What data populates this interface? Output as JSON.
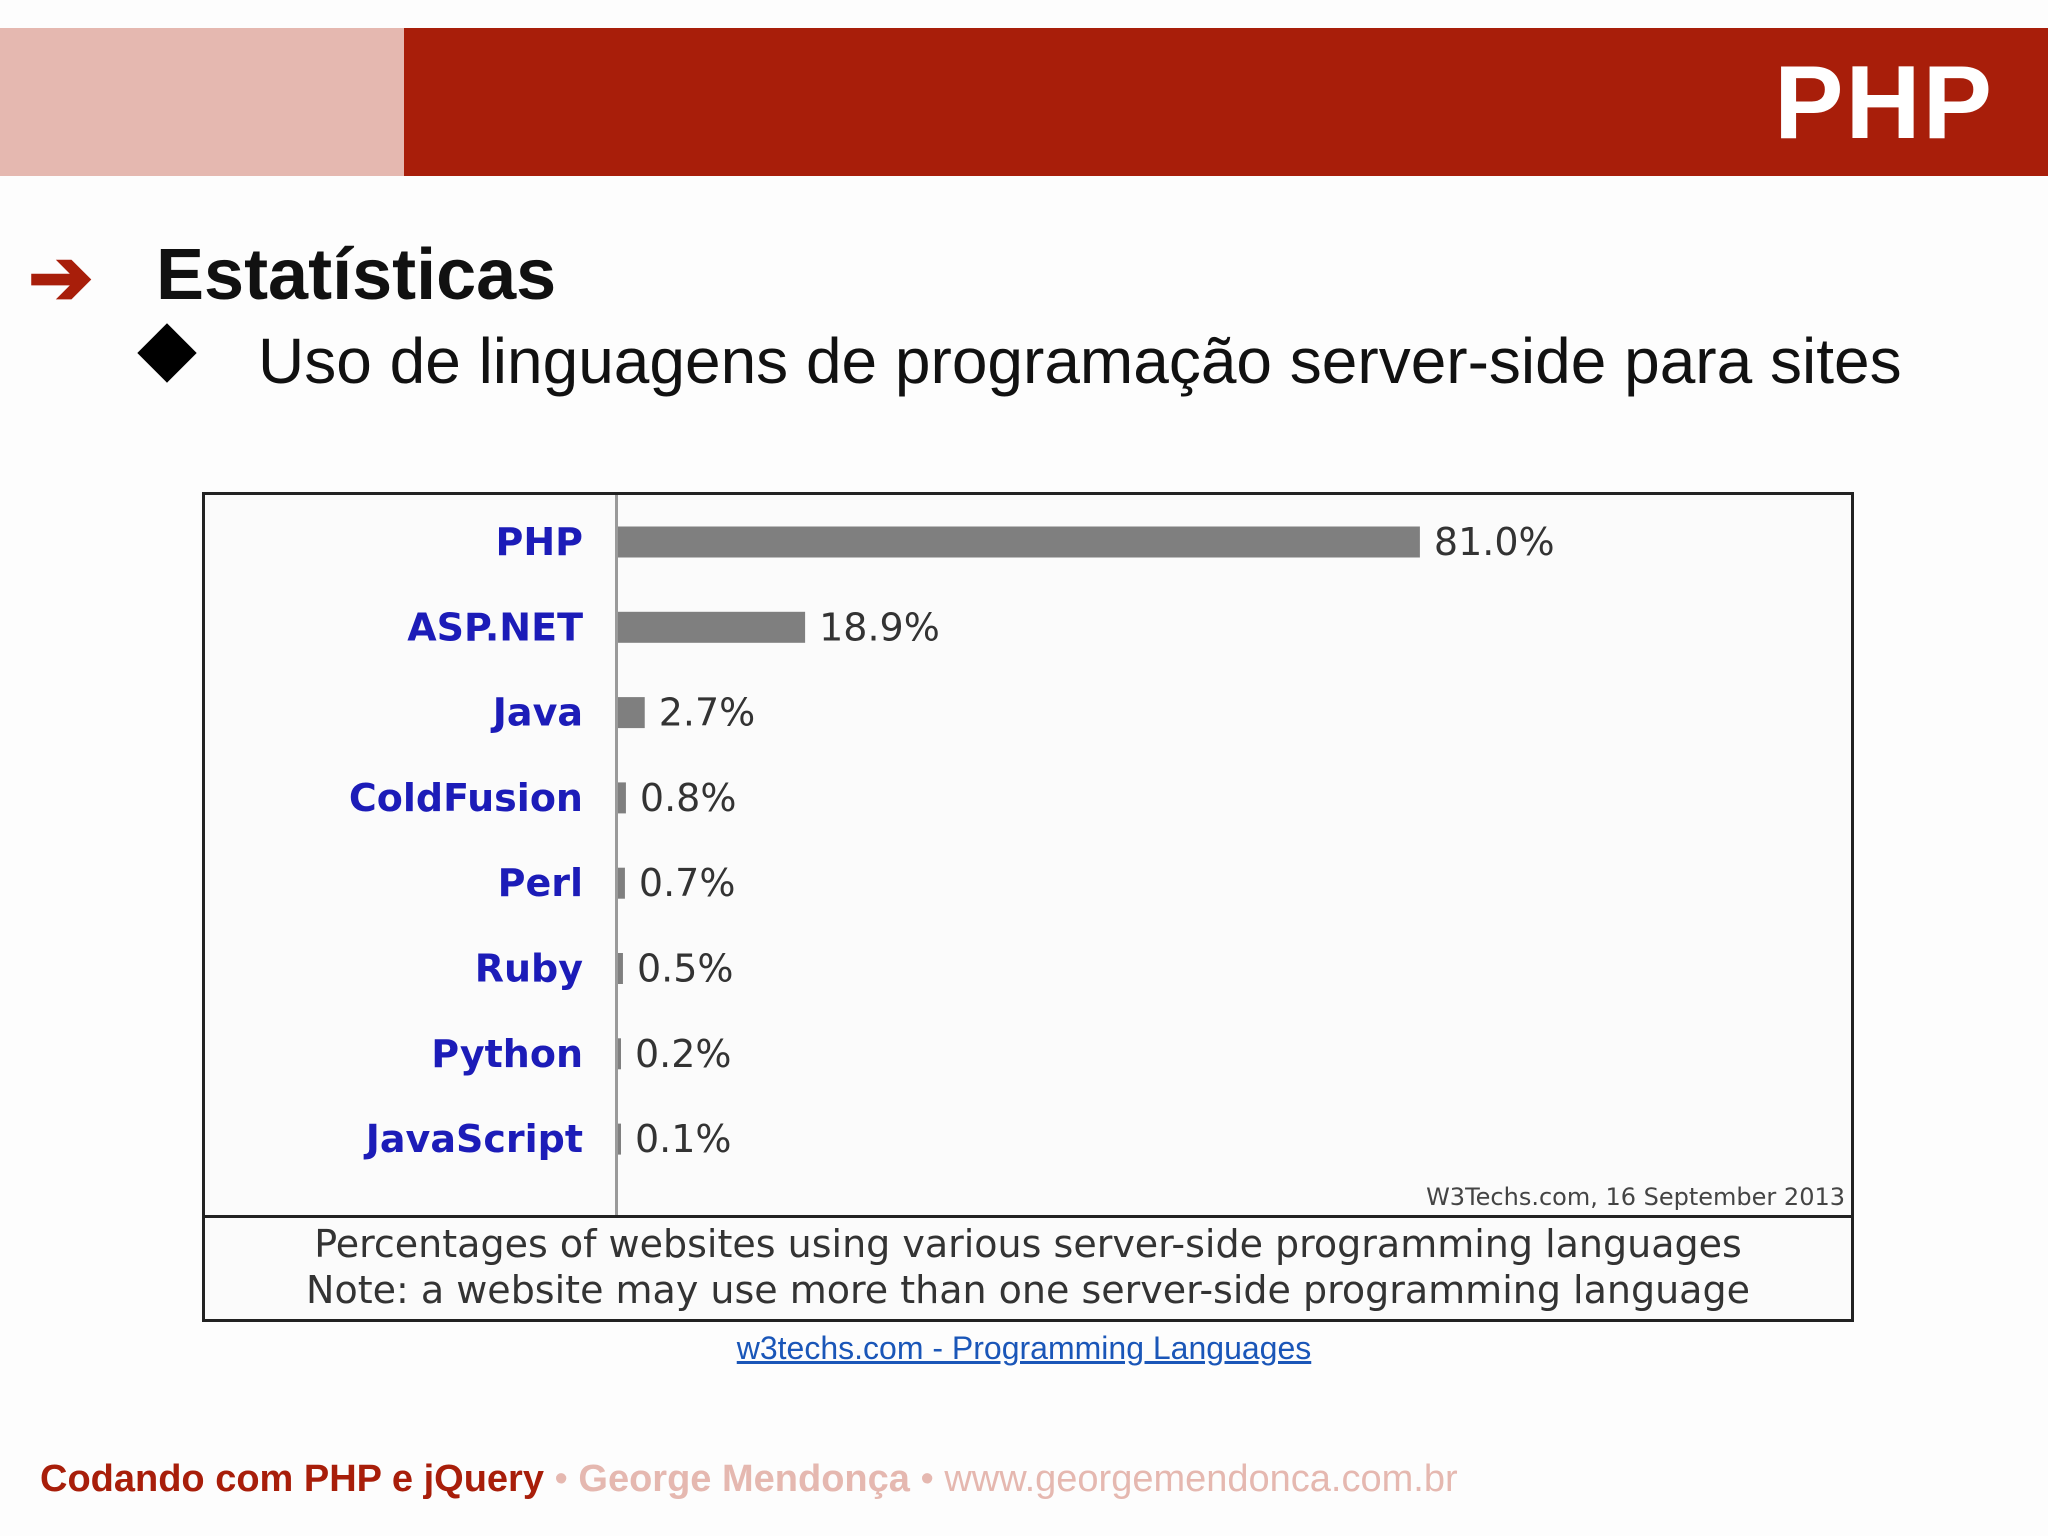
{
  "header": {
    "title": "PHP"
  },
  "slide": {
    "heading": "Estatísticas",
    "bullet": "Uso de linguagens de programação server-side para sites"
  },
  "chart_data": {
    "type": "bar",
    "orientation": "horizontal",
    "categories": [
      "PHP",
      "ASP.NET",
      "Java",
      "ColdFusion",
      "Perl",
      "Ruby",
      "Python",
      "JavaScript"
    ],
    "values": [
      81.0,
      18.9,
      2.7,
      0.8,
      0.7,
      0.5,
      0.2,
      0.1
    ],
    "value_labels": [
      "81.0%",
      "18.9%",
      "2.7%",
      "0.8%",
      "0.7%",
      "0.5%",
      "0.2%",
      "0.1%"
    ],
    "xlim": [
      0,
      100
    ],
    "grid": false,
    "legend": "none",
    "bar_color": "#7f7f7f",
    "label_color": "#1c1cb8",
    "source": "W3Techs.com, 16 September 2013",
    "caption_lines": [
      "Percentages of websites using various server-side programming languages",
      "Note: a website may use more than one server-side programming language"
    ]
  },
  "link_text": "w3techs.com - Programming Languages",
  "footer": {
    "course": "Codando com PHP e jQuery",
    "separator": "•",
    "author": "George Mendonça",
    "website": "www.georgemendonca.com.br"
  },
  "colors": {
    "brand_dark": "#a81e0a",
    "brand_light": "#e5b8b0"
  }
}
